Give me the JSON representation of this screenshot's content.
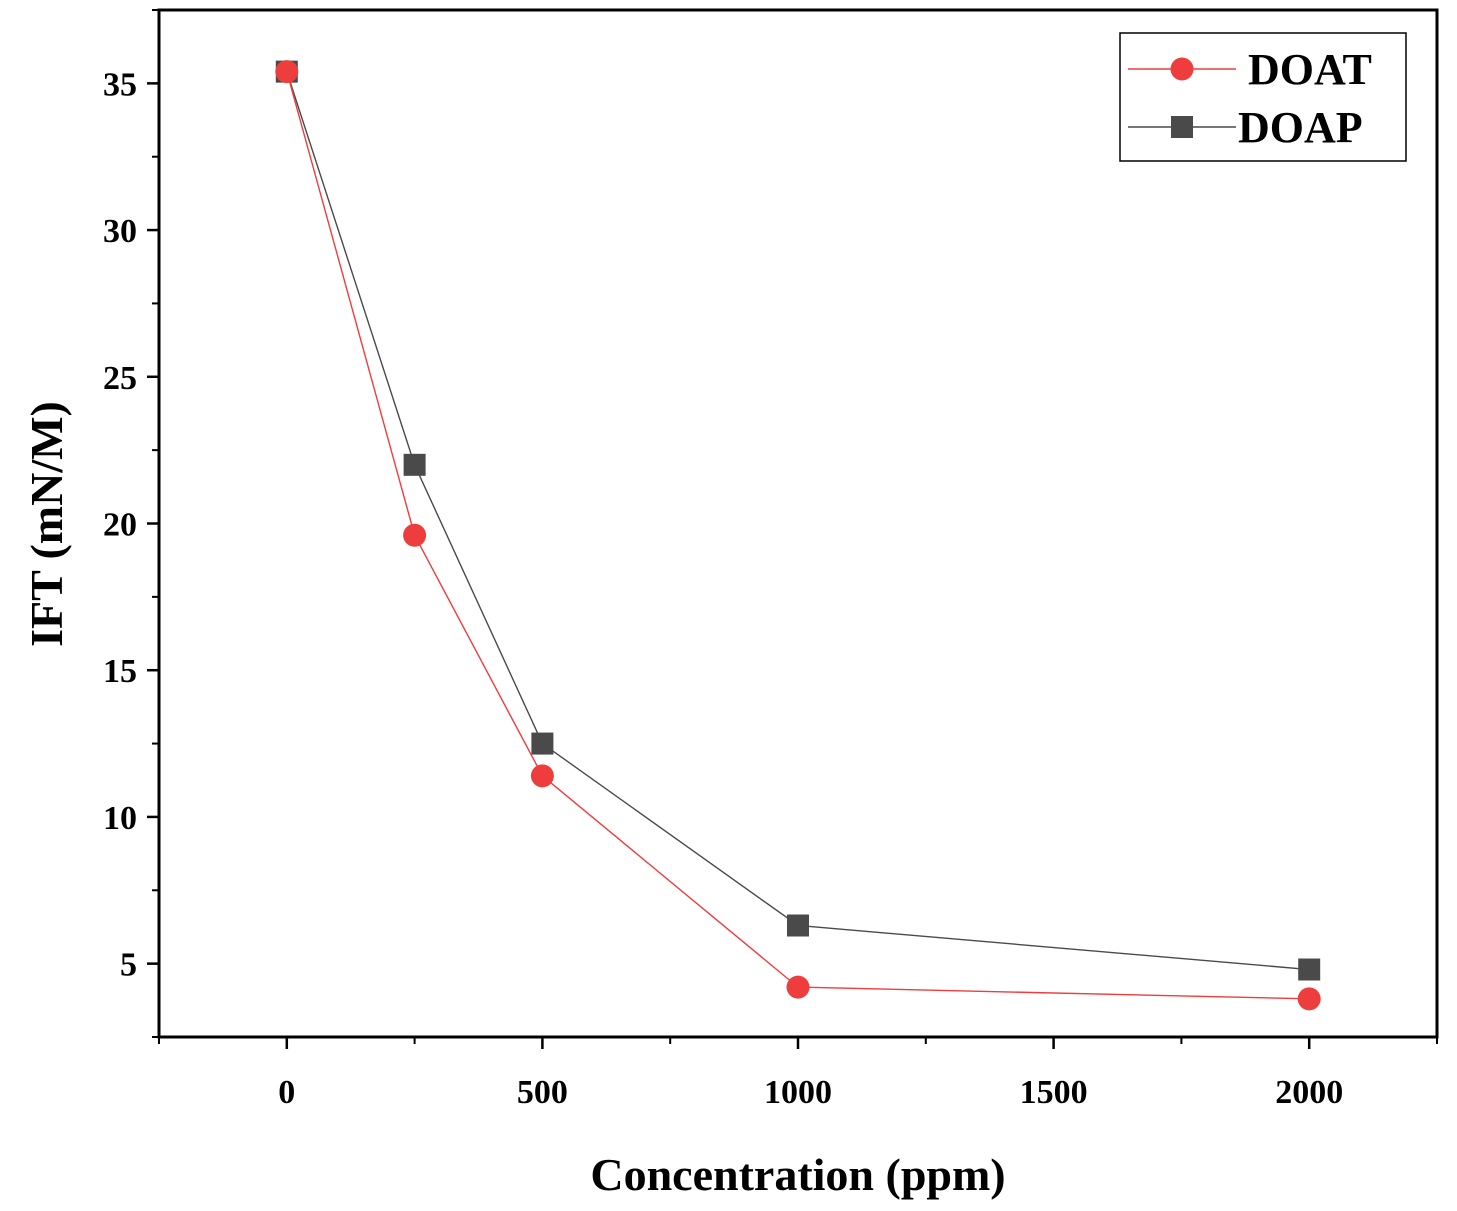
{
  "chart_data": {
    "type": "line",
    "title": "",
    "xlabel": "Concentration (ppm)",
    "ylabel": "IFT (mN/M)",
    "x_ticks": [
      0,
      500,
      1000,
      1500,
      2000
    ],
    "x_tick_labels": [
      "0",
      "500",
      "1000",
      "1500",
      "2000"
    ],
    "y_ticks": [
      5,
      10,
      15,
      20,
      25,
      30,
      35
    ],
    "y_tick_labels": [
      "5",
      "10",
      "15",
      "20",
      "25",
      "30",
      "35"
    ],
    "xlim": [
      -250,
      2250
    ],
    "ylim": [
      2.5,
      37.5
    ],
    "grid": false,
    "legend_position": "top-right",
    "series": [
      {
        "name": "DOAT",
        "marker": "circle",
        "color": "#ee3d3d",
        "x": [
          0,
          250,
          500,
          1000,
          2000
        ],
        "values": [
          35.4,
          19.6,
          11.4,
          4.2,
          3.8
        ]
      },
      {
        "name": "DOAP",
        "marker": "square",
        "color": "#4a4a4a",
        "x": [
          0,
          250,
          500,
          1000,
          2000
        ],
        "values": [
          35.4,
          22.0,
          12.5,
          6.3,
          4.8
        ]
      }
    ]
  }
}
